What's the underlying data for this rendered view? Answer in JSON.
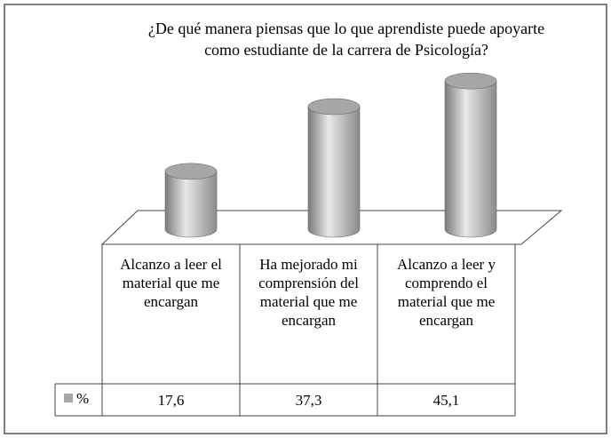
{
  "chart_data": {
    "type": "bar",
    "title": "¿De qué manera piensas que lo que aprendiste puede apoyarte como estudiante de la carrera de Psicología?",
    "categories": [
      "Alcanzo a leer el material que me encargan",
      "Ha mejorado mi comprensión del material que me encargan",
      "Alcanzo a leer y comprendo el material que me encargan"
    ],
    "series": [
      {
        "name": "%",
        "color": "#a6a6a6",
        "values": [
          17.6,
          37.3,
          45.1
        ],
        "value_labels": [
          "17,6",
          "37,3",
          "45,1"
        ]
      }
    ]
  }
}
